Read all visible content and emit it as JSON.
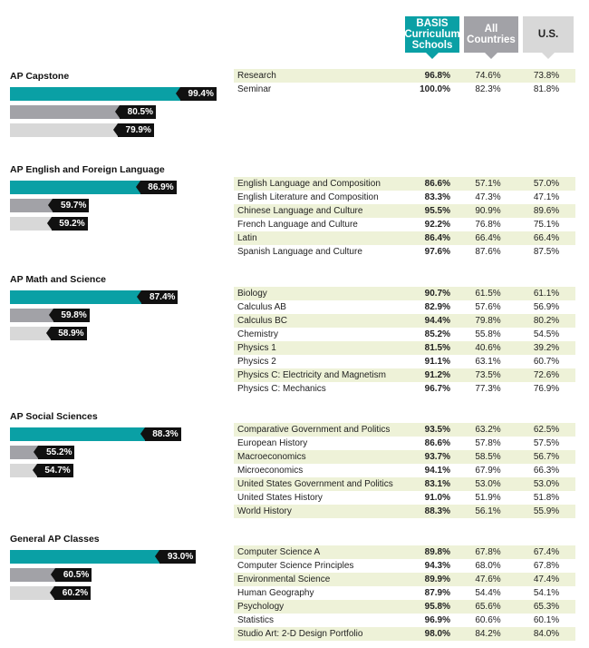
{
  "header": {
    "basis": "BASIS Curriculum Schools",
    "all": "All Countries",
    "us": "U.S."
  },
  "colors": {
    "basis": "#0aa0a5",
    "all": "#a2a2a7",
    "us": "#d8d8d8",
    "label_bg": "#111111",
    "row_shade": "#eef2d8"
  },
  "chart_data": {
    "type": "bar",
    "series_keys": [
      "basis",
      "all",
      "us"
    ],
    "sections": [
      {
        "title": "AP Capstone",
        "bars": {
          "basis": 99.4,
          "all": 80.5,
          "us": 79.9
        },
        "bar_labels": {
          "basis": "99.4%",
          "all": "80.5%",
          "us": "79.9%"
        },
        "courses": [
          {
            "name": "Research",
            "basis": "96.8%",
            "all": "74.6%",
            "us": "73.8%"
          },
          {
            "name": "Seminar",
            "basis": "100.0%",
            "all": "82.3%",
            "us": "81.8%"
          }
        ]
      },
      {
        "title": "AP English and Foreign Language",
        "bars": {
          "basis": 86.9,
          "all": 59.7,
          "us": 59.2
        },
        "bar_labels": {
          "basis": "86.9%",
          "all": "59.7%",
          "us": "59.2%"
        },
        "courses": [
          {
            "name": "English Language and Composition",
            "basis": "86.6%",
            "all": "57.1%",
            "us": "57.0%"
          },
          {
            "name": "English Literature and Composition",
            "basis": "83.3%",
            "all": "47.3%",
            "us": "47.1%"
          },
          {
            "name": "Chinese Language and Culture",
            "basis": "95.5%",
            "all": "90.9%",
            "us": "89.6%"
          },
          {
            "name": "French Language and Culture",
            "basis": "92.2%",
            "all": "76.8%",
            "us": "75.1%"
          },
          {
            "name": "Latin",
            "basis": "86.4%",
            "all": "66.4%",
            "us": "66.4%"
          },
          {
            "name": "Spanish Language and Culture",
            "basis": "97.6%",
            "all": "87.6%",
            "us": "87.5%"
          }
        ]
      },
      {
        "title": "AP Math and Science",
        "bars": {
          "basis": 87.4,
          "all": 59.8,
          "us": 58.9
        },
        "bar_labels": {
          "basis": "87.4%",
          "all": "59.8%",
          "us": "58.9%"
        },
        "courses": [
          {
            "name": "Biology",
            "basis": "90.7%",
            "all": "61.5%",
            "us": "61.1%"
          },
          {
            "name": "Calculus AB",
            "basis": "82.9%",
            "all": "57.6%",
            "us": "56.9%"
          },
          {
            "name": "Calculus BC",
            "basis": "94.4%",
            "all": "79.8%",
            "us": "80.2%"
          },
          {
            "name": "Chemistry",
            "basis": "85.2%",
            "all": "55.8%",
            "us": "54.5%"
          },
          {
            "name": "Physics 1",
            "basis": "81.5%",
            "all": "40.6%",
            "us": "39.2%"
          },
          {
            "name": "Physics 2",
            "basis": "91.1%",
            "all": "63.1%",
            "us": "60.7%"
          },
          {
            "name": "Physics C: Electricity and Magnetism",
            "basis": "91.2%",
            "all": "73.5%",
            "us": "72.6%"
          },
          {
            "name": "Physics C: Mechanics",
            "basis": "96.7%",
            "all": "77.3%",
            "us": "76.9%"
          }
        ]
      },
      {
        "title": "AP Social Sciences",
        "bars": {
          "basis": 88.3,
          "all": 55.2,
          "us": 54.7
        },
        "bar_labels": {
          "basis": "88.3%",
          "all": "55.2%",
          "us": "54.7%"
        },
        "courses": [
          {
            "name": "Comparative Government and Politics",
            "basis": "93.5%",
            "all": "63.2%",
            "us": "62.5%"
          },
          {
            "name": "European History",
            "basis": "86.6%",
            "all": "57.8%",
            "us": "57.5%"
          },
          {
            "name": "Macroeconomics",
            "basis": "93.7%",
            "all": "58.5%",
            "us": "56.7%"
          },
          {
            "name": "Microeconomics",
            "basis": "94.1%",
            "all": "67.9%",
            "us": "66.3%"
          },
          {
            "name": "United States Government and Politics",
            "basis": "83.1%",
            "all": "53.0%",
            "us": "53.0%"
          },
          {
            "name": "United States History",
            "basis": "91.0%",
            "all": "51.9%",
            "us": "51.8%"
          },
          {
            "name": "World History",
            "basis": "88.3%",
            "all": "56.1%",
            "us": "55.9%"
          }
        ]
      },
      {
        "title": "General AP Classes",
        "bars": {
          "basis": 93.0,
          "all": 60.5,
          "us": 60.2
        },
        "bar_labels": {
          "basis": "93.0%",
          "all": "60.5%",
          "us": "60.2%"
        },
        "courses": [
          {
            "name": "Computer Science A",
            "basis": "89.8%",
            "all": "67.8%",
            "us": "67.4%"
          },
          {
            "name": "Computer Science Principles",
            "basis": "94.3%",
            "all": "68.0%",
            "us": "67.8%"
          },
          {
            "name": "Environmental Science",
            "basis": "89.9%",
            "all": "47.6%",
            "us": "47.4%"
          },
          {
            "name": "Human Geography",
            "basis": "87.9%",
            "all": "54.4%",
            "us": "54.1%"
          },
          {
            "name": "Psychology",
            "basis": "95.8%",
            "all": "65.6%",
            "us": "65.3%"
          },
          {
            "name": "Statistics",
            "basis": "96.9%",
            "all": "60.6%",
            "us": "60.1%"
          },
          {
            "name": "Studio Art: 2-D Design Portfolio",
            "basis": "98.0%",
            "all": "84.2%",
            "us": "84.0%"
          }
        ]
      }
    ]
  }
}
